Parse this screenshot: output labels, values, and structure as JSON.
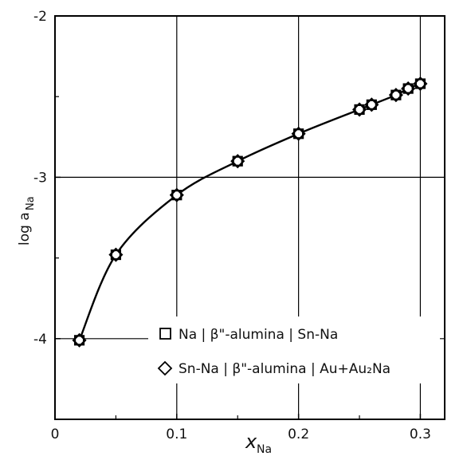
{
  "chart_data": {
    "type": "scatter",
    "xlabel": "x",
    "xlabel_sub": "Na",
    "ylabel": "log a",
    "ylabel_sub": "Na",
    "xlim": [
      0,
      0.32
    ],
    "ylim": [
      -4.5,
      -2
    ],
    "x_ticks": [
      0,
      0.1,
      0.2,
      0.3
    ],
    "x_tick_labels": [
      "0",
      "0.1",
      "0.2",
      "0.3"
    ],
    "y_ticks": [
      -4,
      -3,
      -2
    ],
    "y_tick_labels": [
      "-4",
      "-3",
      "-2"
    ],
    "grid": true,
    "legend_position": "lower-right",
    "series": [
      {
        "name": "Na | β\"-alumina | Sn-Na",
        "marker": "square",
        "x": [
          0.02,
          0.05,
          0.1,
          0.15,
          0.2,
          0.25,
          0.26,
          0.28,
          0.29,
          0.3
        ],
        "y": [
          -4.01,
          -3.48,
          -3.11,
          -2.9,
          -2.73,
          -2.58,
          -2.55,
          -2.49,
          -2.45,
          -2.42
        ]
      },
      {
        "name": "Sn-Na | β\"-alumina | Au+Au₂Na",
        "marker": "diamond",
        "x": [
          0.02,
          0.05,
          0.1,
          0.15,
          0.2,
          0.25,
          0.26,
          0.28,
          0.29,
          0.3
        ],
        "y": [
          -4.01,
          -3.48,
          -3.11,
          -2.9,
          -2.73,
          -2.58,
          -2.55,
          -2.49,
          -2.45,
          -2.42
        ]
      }
    ],
    "legend": [
      {
        "marker": "square",
        "label": "Na | β\"-alumina | Sn-Na"
      },
      {
        "marker": "diamond",
        "label": "Sn-Na | β\"-alumina | Au+Au₂Na"
      }
    ]
  }
}
